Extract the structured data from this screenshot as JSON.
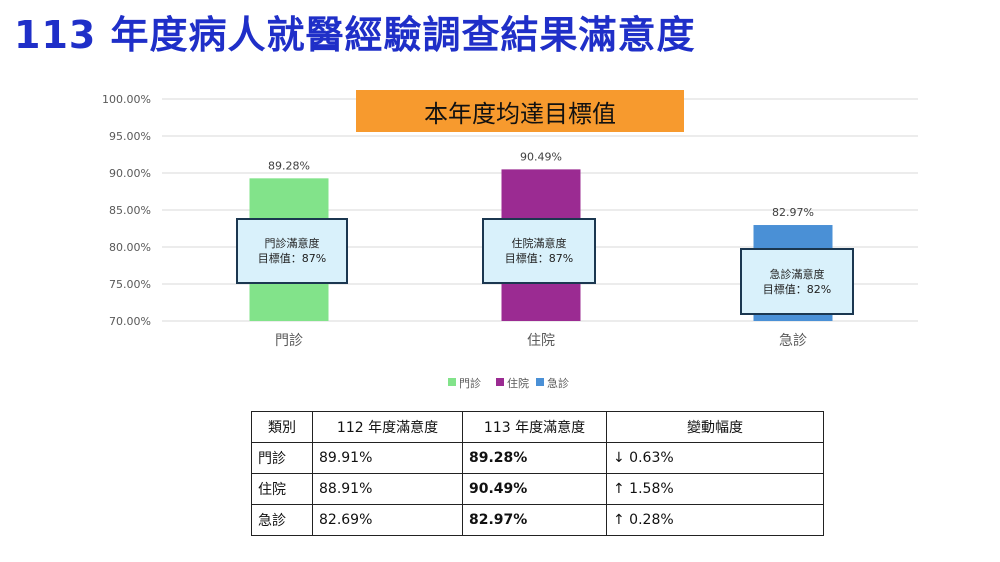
{
  "page": {
    "title": "113 年度病人就醫經驗調查結果滿意度"
  },
  "banner": {
    "text": "本年度均達目標值"
  },
  "chart_data": {
    "type": "bar",
    "categories": [
      "門診",
      "住院",
      "急診"
    ],
    "values": [
      89.28,
      90.49,
      82.97
    ],
    "value_labels": [
      "89.28%",
      "90.49%",
      "82.97%"
    ],
    "colors": [
      "#82e38a",
      "#9b2b92",
      "#4a90d6"
    ],
    "ylim": [
      70,
      100
    ],
    "yticks": [
      70,
      75,
      80,
      85,
      90,
      95,
      100
    ],
    "ytick_labels": [
      "70.00%",
      "75.00%",
      "80.00%",
      "85.00%",
      "90.00%",
      "95.00%",
      "100.00%"
    ],
    "grid": true,
    "legend": [
      "門診",
      "住院",
      "急診"
    ],
    "legend_position": "bottom",
    "targets": [
      {
        "label": "門診滿意度",
        "value_text": "目標值：87%"
      },
      {
        "label": "住院滿意度",
        "value_text": "目標值：87%"
      },
      {
        "label": "急診滿意度",
        "value_text": "目標值：82%"
      }
    ]
  },
  "table": {
    "headers": [
      "類別",
      "112 年度滿意度",
      "113 年度滿意度",
      "變動幅度"
    ],
    "rows": [
      [
        "門診",
        "89.91%",
        "89.28%",
        "↓ 0.63%"
      ],
      [
        "住院",
        "88.91%",
        "90.49%",
        "↑ 1.58%"
      ],
      [
        "急診",
        "82.69%",
        "82.97%",
        "↑ 0.28%"
      ]
    ]
  }
}
